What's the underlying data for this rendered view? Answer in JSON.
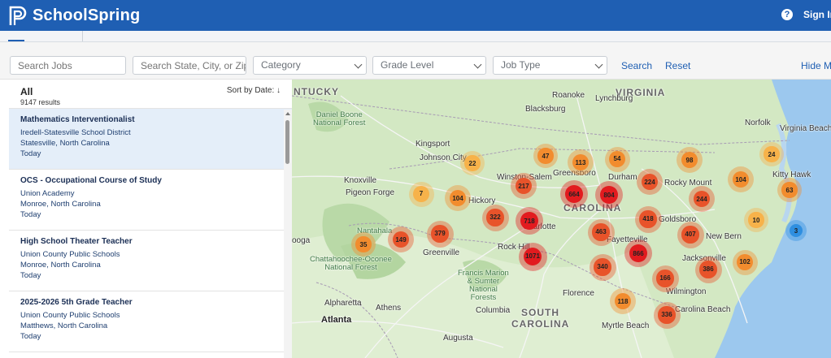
{
  "header": {
    "logo_text": "SchoolSpring",
    "sign_in_label": "Sign In",
    "help_icon": "question-circle-icon"
  },
  "filters": {
    "search_jobs_placeholder": "Search Jobs",
    "location_placeholder": "Search State, City, or Zip",
    "category_value": "Category",
    "grade_level_value": "Grade Level",
    "job_type_value": "Job Type",
    "search_label": "Search",
    "reset_label": "Reset",
    "hide_map_label": "Hide Ma"
  },
  "list": {
    "all_label": "All",
    "results_text": "9147 results",
    "sort_label": "Sort by Date: ↓",
    "jobs": [
      {
        "title": "Mathematics Interventionalist",
        "employer": "Iredell-Statesville School District",
        "location": "Statesville, North Carolina",
        "date": "Today",
        "selected": true
      },
      {
        "title": "OCS - Occupational Course of Study",
        "employer": "Union Academy",
        "location": "Monroe, North Carolina",
        "date": "Today",
        "selected": false
      },
      {
        "title": "High School Theater Teacher",
        "employer": "Union County Public Schools",
        "location": "Monroe, North Carolina",
        "date": "Today",
        "selected": false
      },
      {
        "title": "2025-2026 5th Grade Teacher",
        "employer": "Union County Public Schools",
        "location": "Matthews, North Carolina",
        "date": "Today",
        "selected": false
      }
    ]
  },
  "map": {
    "labels": [
      {
        "text": "NTUCKY",
        "cls": "big"
      },
      {
        "text": "VIRGINIA",
        "cls": "big"
      },
      {
        "text": "CAROLINA",
        "cls": "big"
      },
      {
        "text": "SOUTH",
        "cls": "big"
      },
      {
        "text": "CAROLINA",
        "cls": "big"
      },
      {
        "text": "Daniel Boone\nNational Forest",
        "cls": "park"
      },
      {
        "text": "Chattahoochee-Oconee\nNational Forest",
        "cls": "park"
      },
      {
        "text": "Francis Marion\n& Sumter\nNational\nForests",
        "cls": "park"
      },
      {
        "text": "Nantahala",
        "cls": "park"
      },
      {
        "text": "Blacksburg",
        "cls": "city"
      },
      {
        "text": "Roanoke",
        "cls": "city"
      },
      {
        "text": "Lynchburg",
        "cls": "city"
      },
      {
        "text": "Norfolk",
        "cls": "city"
      },
      {
        "text": "Virginia Beach",
        "cls": "city"
      },
      {
        "text": "Kingsport",
        "cls": "city"
      },
      {
        "text": "Johnson City",
        "cls": "city"
      },
      {
        "text": "Knoxville",
        "cls": "city"
      },
      {
        "text": "Pigeon Forge",
        "cls": "city"
      },
      {
        "text": "Winston-Salem",
        "cls": "city"
      },
      {
        "text": "Greensboro",
        "cls": "city"
      },
      {
        "text": "Durham",
        "cls": "city"
      },
      {
        "text": "Rocky Mount",
        "cls": "city"
      },
      {
        "text": "Kitty Hawk",
        "cls": "city"
      },
      {
        "text": "Hickory",
        "cls": "city"
      },
      {
        "text": "Goldsboro",
        "cls": "city"
      },
      {
        "text": "Fayetteville",
        "cls": "city"
      },
      {
        "text": "New Bern",
        "cls": "city"
      },
      {
        "text": "Jacksonville",
        "cls": "city"
      },
      {
        "text": "Wilmington",
        "cls": "city"
      },
      {
        "text": "Rock Hill",
        "cls": "city"
      },
      {
        "text": "Charlotte",
        "cls": "city"
      },
      {
        "text": "Greenville",
        "cls": "city"
      },
      {
        "text": "Columbia",
        "cls": "city"
      },
      {
        "text": "Florence",
        "cls": "city"
      },
      {
        "text": "Myrtle Beach",
        "cls": "city"
      },
      {
        "text": "Carolina Beach",
        "cls": "city"
      },
      {
        "text": "Alpharetta",
        "cls": "city"
      },
      {
        "text": "Athens",
        "cls": "city"
      },
      {
        "text": "Atlanta",
        "cls": "bigcity"
      },
      {
        "text": "Augusta",
        "cls": "city"
      },
      {
        "text": "ooga",
        "cls": "city"
      },
      {
        "text": "National Forest",
        "cls": "city"
      }
    ],
    "clusters": [
      {
        "count": "47",
        "level": "orange"
      },
      {
        "count": "113",
        "level": "orange"
      },
      {
        "count": "54",
        "level": "orange"
      },
      {
        "count": "98",
        "level": "orange"
      },
      {
        "count": "24",
        "level": "yellow"
      },
      {
        "count": "22",
        "level": "yellow"
      },
      {
        "count": "217",
        "level": "redorange"
      },
      {
        "count": "664",
        "level": "red"
      },
      {
        "count": "804",
        "level": "red"
      },
      {
        "count": "224",
        "level": "redorange"
      },
      {
        "count": "244",
        "level": "redorange"
      },
      {
        "count": "104",
        "level": "orange"
      },
      {
        "count": "63",
        "level": "orange"
      },
      {
        "count": "7",
        "level": "yellow"
      },
      {
        "count": "104",
        "level": "orange"
      },
      {
        "count": "322",
        "level": "redorange"
      },
      {
        "count": "718",
        "level": "red"
      },
      {
        "count": "418",
        "level": "redorange"
      },
      {
        "count": "10",
        "level": "yellow"
      },
      {
        "count": "3",
        "level": "blue"
      },
      {
        "count": "35",
        "level": "orange"
      },
      {
        "count": "149",
        "level": "redorange"
      },
      {
        "count": "379",
        "level": "redorange"
      },
      {
        "count": "463",
        "level": "redorange"
      },
      {
        "count": "407",
        "level": "redorange"
      },
      {
        "count": "1071",
        "level": "red"
      },
      {
        "count": "866",
        "level": "red"
      },
      {
        "count": "340",
        "level": "redorange"
      },
      {
        "count": "386",
        "level": "redorange"
      },
      {
        "count": "102",
        "level": "orange"
      },
      {
        "count": "166",
        "level": "redorange"
      },
      {
        "count": "118",
        "level": "orange"
      },
      {
        "count": "336",
        "level": "redorange"
      }
    ],
    "colors": {
      "yellow": "#f7b24a",
      "orange": "#f28c2e",
      "redorange": "#e8532a",
      "red": "#e21b1f",
      "blue": "#2f8fe0"
    }
  }
}
